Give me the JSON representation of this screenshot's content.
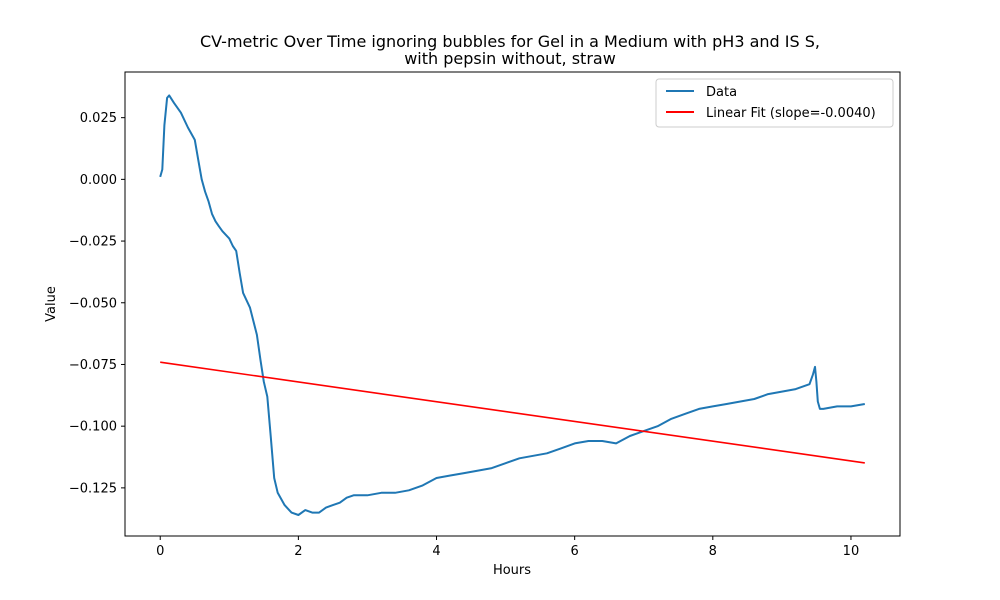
{
  "chart_data": {
    "type": "line",
    "title_lines": [
      "CV-metric Over Time ignoring bubbles for Gel in a Medium with pH3 and IS S,",
      "with pepsin without, straw"
    ],
    "xlabel": "Hours",
    "ylabel": "Value",
    "xlim": [
      -0.51,
      10.71
    ],
    "ylim": [
      -0.1445,
      0.0435
    ],
    "xticks": [
      0,
      2,
      4,
      6,
      8,
      10
    ],
    "xtick_labels": [
      "0",
      "2",
      "4",
      "6",
      "8",
      "10"
    ],
    "yticks": [
      0.025,
      0.0,
      -0.025,
      -0.05,
      -0.075,
      -0.1,
      -0.125
    ],
    "ytick_labels": [
      "0.025",
      "0.000",
      "−0.025",
      "−0.050",
      "−0.075",
      "−0.100",
      "−0.125"
    ],
    "grid": false,
    "legend_position": "upper-right",
    "series": [
      {
        "name": "Data",
        "color": "#1f77b4",
        "x": [
          0.0,
          0.03,
          0.06,
          0.1,
          0.13,
          0.2,
          0.3,
          0.4,
          0.5,
          0.55,
          0.6,
          0.65,
          0.7,
          0.75,
          0.8,
          0.85,
          0.9,
          1.0,
          1.05,
          1.1,
          1.15,
          1.2,
          1.3,
          1.4,
          1.45,
          1.5,
          1.55,
          1.6,
          1.65,
          1.7,
          1.8,
          1.9,
          2.0,
          2.1,
          2.2,
          2.3,
          2.4,
          2.5,
          2.6,
          2.7,
          2.8,
          3.0,
          3.2,
          3.4,
          3.6,
          3.8,
          4.0,
          4.2,
          4.4,
          4.6,
          4.8,
          5.0,
          5.2,
          5.4,
          5.6,
          5.8,
          6.0,
          6.2,
          6.4,
          6.6,
          6.8,
          7.0,
          7.2,
          7.4,
          7.6,
          7.8,
          8.0,
          8.2,
          8.4,
          8.6,
          8.8,
          9.0,
          9.2,
          9.4,
          9.45,
          9.48,
          9.5,
          9.52,
          9.55,
          9.6,
          9.8,
          10.0,
          10.2
        ],
        "y": [
          0.001,
          0.004,
          0.022,
          0.033,
          0.034,
          0.031,
          0.027,
          0.021,
          0.016,
          0.008,
          0.0,
          -0.005,
          -0.009,
          -0.014,
          -0.017,
          -0.019,
          -0.021,
          -0.024,
          -0.027,
          -0.029,
          -0.038,
          -0.046,
          -0.052,
          -0.063,
          -0.073,
          -0.082,
          -0.088,
          -0.104,
          -0.121,
          -0.127,
          -0.132,
          -0.135,
          -0.136,
          -0.134,
          -0.135,
          -0.135,
          -0.133,
          -0.132,
          -0.131,
          -0.129,
          -0.128,
          -0.128,
          -0.127,
          -0.127,
          -0.126,
          -0.124,
          -0.121,
          -0.12,
          -0.119,
          -0.118,
          -0.117,
          -0.115,
          -0.113,
          -0.112,
          -0.111,
          -0.109,
          -0.107,
          -0.106,
          -0.106,
          -0.107,
          -0.104,
          -0.102,
          -0.1,
          -0.097,
          -0.095,
          -0.093,
          -0.092,
          -0.091,
          -0.09,
          -0.089,
          -0.087,
          -0.086,
          -0.085,
          -0.083,
          -0.079,
          -0.076,
          -0.082,
          -0.09,
          -0.093,
          -0.093,
          -0.092,
          -0.092,
          -0.091
        ]
      },
      {
        "name": "Linear Fit (slope=-0.0040)",
        "color": "#ff0000",
        "x": [
          0.0,
          10.2
        ],
        "y": [
          -0.0741,
          -0.1149
        ]
      }
    ]
  }
}
